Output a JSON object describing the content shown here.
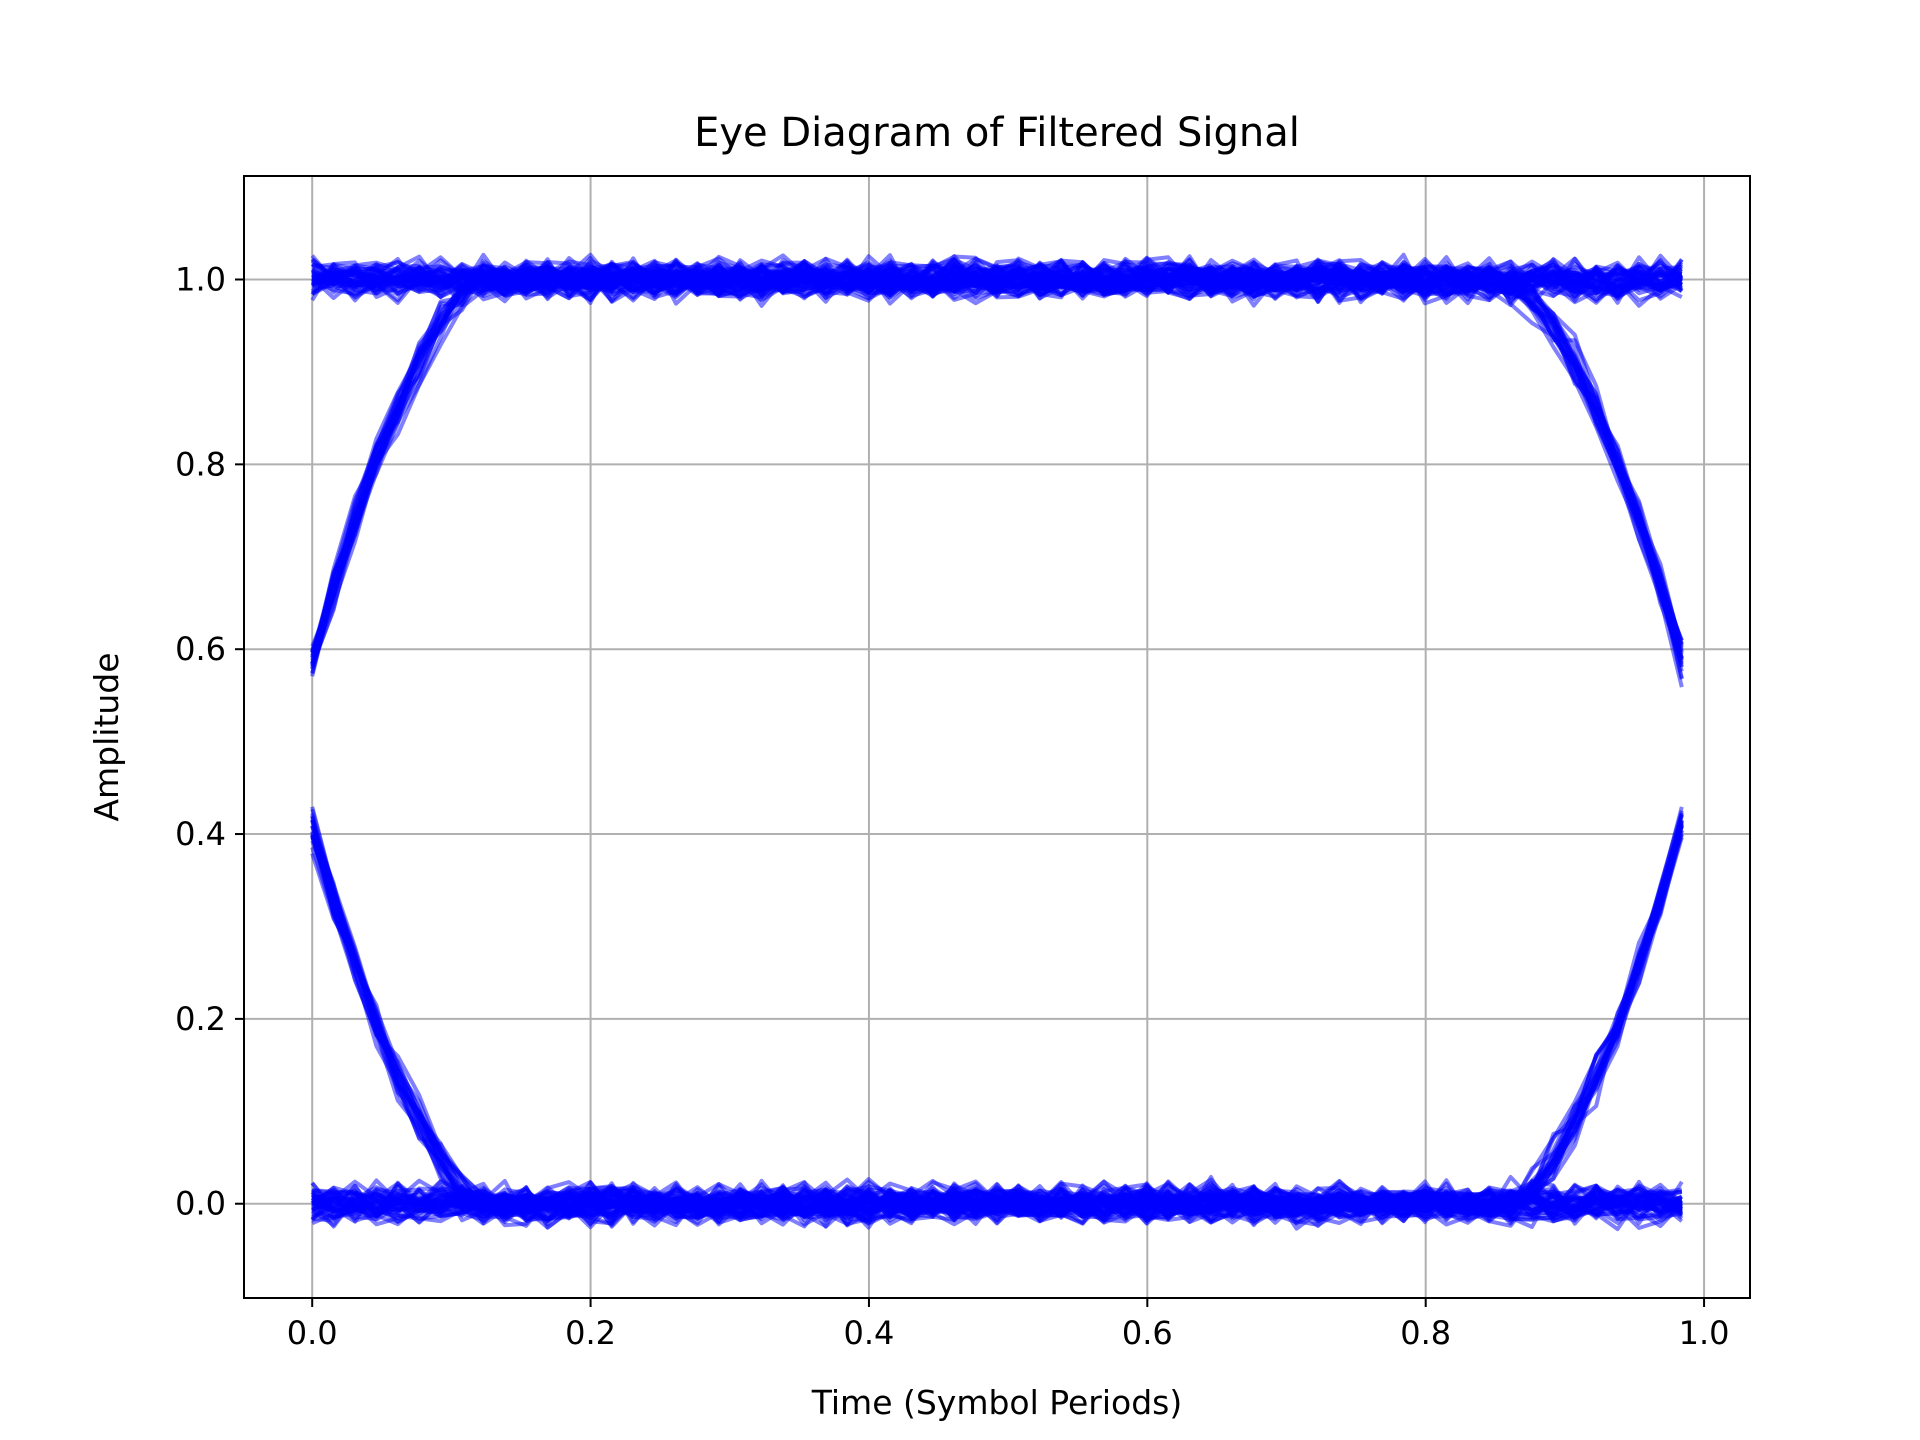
{
  "chart_data": {
    "type": "line",
    "title": "Eye Diagram of Filtered Signal",
    "xlabel": "Time (Symbol Periods)",
    "ylabel": "Amplitude",
    "xlim": [
      -0.049,
      1.033
    ],
    "ylim": [
      -0.102,
      1.112
    ],
    "xticks": [
      "0.0",
      "0.2",
      "0.4",
      "0.6",
      "0.8",
      "1.0"
    ],
    "xtick_values": [
      0.0,
      0.2,
      0.4,
      0.6,
      0.8,
      1.0
    ],
    "yticks": [
      "0.0",
      "0.2",
      "0.4",
      "0.6",
      "0.8",
      "1.0"
    ],
    "ytick_values": [
      0.0,
      0.2,
      0.4,
      0.6,
      0.8,
      1.0
    ],
    "grid": true,
    "line_color": "#0000ff",
    "line_opacity": 0.5,
    "symbol_span": [
      0.0,
      0.984
    ],
    "rise_fall_span": 0.12,
    "eye_traces": {
      "steady_high": {
        "level": 1.0,
        "count": 24
      },
      "steady_low": {
        "level": 0.0,
        "count": 24
      },
      "rising_start": {
        "from": 0.0,
        "to": 1.0,
        "start_value": 0.59,
        "count": 22
      },
      "falling_start": {
        "from": 1.0,
        "to": 0.0,
        "start_value": 0.41,
        "count": 22
      },
      "rising_end": {
        "from": 0.0,
        "to": 1.0,
        "end_value": 0.41,
        "count": 22
      },
      "falling_end": {
        "from": 1.0,
        "to": 0.0,
        "end_value": 0.59,
        "count": 22
      }
    }
  }
}
